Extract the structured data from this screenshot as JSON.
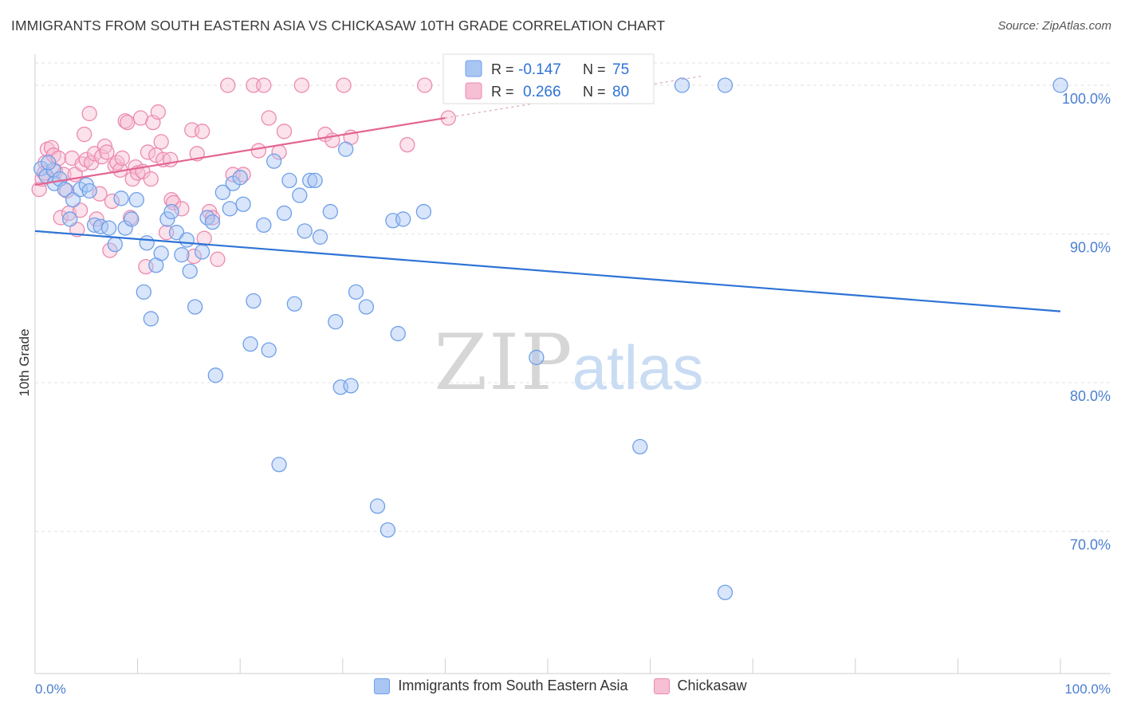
{
  "title": "IMMIGRANTS FROM SOUTH EASTERN ASIA VS CHICKASAW 10TH GRADE CORRELATION CHART",
  "source": "Source: ZipAtlas.com",
  "watermark": {
    "zip": "ZIP",
    "atlas": "atlas"
  },
  "colors": {
    "blue": "#6f9fe8",
    "blue_fill": "#a9c6f3",
    "blue_line": "#2e73d6",
    "pink": "#ec8ab0",
    "pink_fill": "#f6bfd3",
    "pink_line": "#e36591",
    "axis_label": "#4a7fd0"
  },
  "stats": [
    {
      "r_label": "R =",
      "r_value": "-0.147",
      "n_label": "N =",
      "n_value": "75"
    },
    {
      "r_label": "R =",
      "r_value": "0.266",
      "n_label": "N =",
      "n_value": "80"
    }
  ],
  "chart_data": {
    "type": "scatter",
    "title": "IMMIGRANTS FROM SOUTH EASTERN ASIA VS CHICKASAW 10TH GRADE CORRELATION CHART",
    "xlabel": "",
    "ylabel": "10th Grade",
    "xlim": [
      0,
      100
    ],
    "ylim": [
      60.5,
      101.5
    ],
    "x_tick_labels": [
      "0.0%",
      "100.0%"
    ],
    "y_ticks": [
      70,
      80,
      90,
      100
    ],
    "y_tick_labels": [
      "70.0%",
      "80.0%",
      "90.0%",
      "100.0%"
    ],
    "grid": true,
    "legend_position": "bottom",
    "series": [
      {
        "name": "Immigrants from South Eastern Asia",
        "color": "#6f9fe8",
        "trend": {
          "x": [
            0,
            100
          ],
          "y": [
            90.2,
            84.8
          ]
        },
        "points": [
          [
            0.6,
            94.4
          ],
          [
            1.1,
            93.9
          ],
          [
            1.8,
            94.3
          ],
          [
            1.9,
            93.4
          ],
          [
            2.4,
            93.7
          ],
          [
            2.9,
            93.0
          ],
          [
            3.4,
            91.0
          ],
          [
            3.7,
            92.3
          ],
          [
            4.4,
            93.0
          ],
          [
            5.0,
            93.3
          ],
          [
            5.3,
            92.9
          ],
          [
            5.8,
            90.6
          ],
          [
            6.4,
            90.5
          ],
          [
            7.2,
            90.4
          ],
          [
            7.8,
            89.3
          ],
          [
            8.4,
            92.4
          ],
          [
            8.8,
            90.4
          ],
          [
            9.4,
            91.0
          ],
          [
            9.9,
            92.3
          ],
          [
            10.6,
            86.1
          ],
          [
            10.9,
            89.4
          ],
          [
            11.3,
            84.3
          ],
          [
            11.8,
            87.9
          ],
          [
            12.3,
            88.7
          ],
          [
            12.9,
            91.0
          ],
          [
            13.3,
            91.5
          ],
          [
            13.8,
            90.1
          ],
          [
            14.3,
            88.6
          ],
          [
            14.8,
            89.6
          ],
          [
            15.1,
            87.5
          ],
          [
            15.6,
            85.1
          ],
          [
            16.3,
            88.8
          ],
          [
            16.8,
            91.1
          ],
          [
            17.3,
            90.8
          ],
          [
            17.6,
            80.5
          ],
          [
            18.3,
            92.8
          ],
          [
            19.0,
            91.7
          ],
          [
            19.3,
            93.4
          ],
          [
            20.0,
            93.8
          ],
          [
            20.3,
            92.0
          ],
          [
            21.0,
            82.6
          ],
          [
            21.3,
            85.5
          ],
          [
            22.3,
            90.6
          ],
          [
            22.8,
            82.2
          ],
          [
            23.3,
            94.9
          ],
          [
            23.8,
            74.5
          ],
          [
            24.3,
            91.4
          ],
          [
            24.8,
            93.6
          ],
          [
            25.3,
            85.3
          ],
          [
            25.8,
            92.6
          ],
          [
            26.3,
            90.2
          ],
          [
            26.8,
            93.6
          ],
          [
            27.3,
            93.6
          ],
          [
            27.8,
            89.8
          ],
          [
            28.8,
            91.5
          ],
          [
            29.3,
            84.1
          ],
          [
            29.8,
            79.7
          ],
          [
            30.3,
            95.7
          ],
          [
            30.8,
            79.8
          ],
          [
            31.3,
            86.1
          ],
          [
            32.3,
            85.1
          ],
          [
            33.4,
            71.7
          ],
          [
            34.4,
            70.1
          ],
          [
            34.9,
            90.9
          ],
          [
            35.4,
            83.3
          ],
          [
            35.9,
            91.0
          ],
          [
            37.9,
            91.5
          ],
          [
            43.7,
            100.0
          ],
          [
            48.9,
            81.7
          ],
          [
            59.0,
            75.7
          ],
          [
            63.1,
            100.0
          ],
          [
            67.3,
            65.9
          ],
          [
            67.3,
            100.0
          ],
          [
            100.0,
            100.0
          ],
          [
            1.3,
            94.8
          ]
        ]
      },
      {
        "name": "Chickasaw",
        "color": "#ec8ab0",
        "trend": {
          "x": [
            0,
            40
          ],
          "y": [
            93.3,
            97.8
          ]
        },
        "points": [
          [
            0.4,
            93.0
          ],
          [
            0.7,
            93.7
          ],
          [
            1.0,
            94.8
          ],
          [
            1.2,
            95.7
          ],
          [
            1.6,
            95.8
          ],
          [
            1.8,
            95.3
          ],
          [
            2.0,
            94.2
          ],
          [
            2.3,
            95.1
          ],
          [
            2.5,
            91.1
          ],
          [
            2.8,
            94.0
          ],
          [
            3.1,
            92.9
          ],
          [
            3.3,
            91.4
          ],
          [
            3.6,
            95.1
          ],
          [
            3.9,
            94.0
          ],
          [
            4.1,
            90.3
          ],
          [
            4.4,
            91.6
          ],
          [
            4.6,
            94.7
          ],
          [
            4.8,
            96.7
          ],
          [
            5.0,
            95.0
          ],
          [
            5.3,
            98.1
          ],
          [
            5.5,
            94.8
          ],
          [
            5.8,
            95.4
          ],
          [
            6.0,
            91.0
          ],
          [
            6.3,
            92.7
          ],
          [
            6.5,
            95.2
          ],
          [
            6.8,
            95.9
          ],
          [
            7.0,
            95.5
          ],
          [
            7.3,
            88.9
          ],
          [
            7.5,
            92.2
          ],
          [
            7.8,
            94.6
          ],
          [
            8.0,
            94.8
          ],
          [
            8.3,
            94.3
          ],
          [
            8.5,
            95.1
          ],
          [
            8.8,
            97.6
          ],
          [
            9.0,
            97.5
          ],
          [
            9.3,
            91.1
          ],
          [
            9.5,
            93.7
          ],
          [
            9.8,
            94.5
          ],
          [
            10.0,
            94.1
          ],
          [
            10.3,
            97.8
          ],
          [
            10.5,
            94.2
          ],
          [
            10.8,
            87.8
          ],
          [
            11.0,
            95.5
          ],
          [
            11.3,
            93.7
          ],
          [
            11.5,
            97.5
          ],
          [
            11.8,
            95.3
          ],
          [
            12.0,
            98.2
          ],
          [
            12.3,
            96.2
          ],
          [
            12.5,
            95.0
          ],
          [
            12.8,
            90.1
          ],
          [
            13.3,
            92.3
          ],
          [
            13.5,
            92.1
          ],
          [
            14.3,
            91.7
          ],
          [
            15.3,
            97.0
          ],
          [
            15.5,
            88.5
          ],
          [
            15.8,
            95.4
          ],
          [
            16.3,
            96.9
          ],
          [
            16.5,
            89.7
          ],
          [
            17.0,
            91.5
          ],
          [
            17.3,
            91.1
          ],
          [
            17.8,
            88.3
          ],
          [
            18.8,
            100.0
          ],
          [
            19.3,
            94.0
          ],
          [
            20.3,
            94.0
          ],
          [
            21.3,
            100.0
          ],
          [
            21.8,
            95.6
          ],
          [
            22.3,
            100.0
          ],
          [
            22.8,
            97.8
          ],
          [
            23.8,
            95.5
          ],
          [
            24.3,
            96.9
          ],
          [
            26.0,
            100.0
          ],
          [
            28.3,
            96.7
          ],
          [
            29.0,
            96.3
          ],
          [
            30.1,
            100.0
          ],
          [
            30.8,
            96.5
          ],
          [
            36.3,
            96.0
          ],
          [
            38.0,
            100.0
          ],
          [
            40.3,
            97.8
          ],
          [
            0.9,
            94.1
          ],
          [
            13.2,
            95.0
          ]
        ]
      }
    ]
  }
}
